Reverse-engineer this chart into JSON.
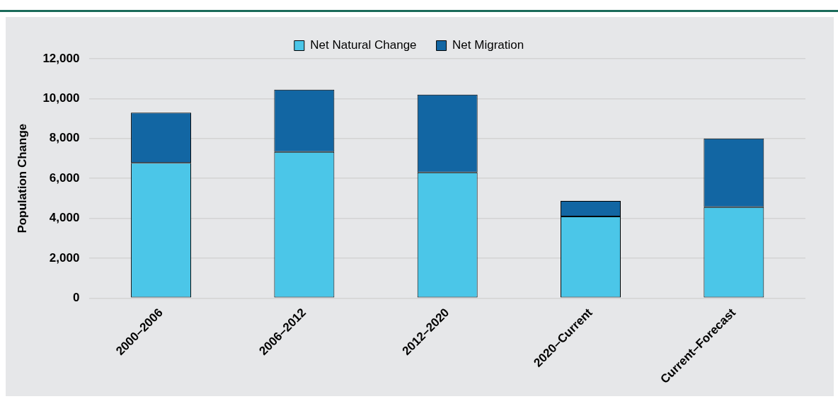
{
  "chart_data": {
    "type": "bar",
    "stacked": true,
    "ylabel": "Population Change",
    "categories": [
      "2000–2006",
      "2006–2012",
      "2012–2020",
      "2020–Current",
      "Current–Forecast"
    ],
    "series": [
      {
        "name": "Net Natural Change",
        "color": "#4bc6e8",
        "values": [
          6780,
          7330,
          6300,
          4090,
          4560
        ]
      },
      {
        "name": "Net Migration",
        "color": "#1266a3",
        "values": [
          2520,
          3120,
          3900,
          780,
          3440
        ]
      }
    ],
    "ylim": [
      0,
      12000
    ],
    "yticks": [
      {
        "value": 0,
        "label": "0"
      },
      {
        "value": 2000,
        "label": "2,000"
      },
      {
        "value": 4000,
        "label": "4,000"
      },
      {
        "value": 6000,
        "label": "6,000"
      },
      {
        "value": 8000,
        "label": "8,000"
      },
      {
        "value": 10000,
        "label": "10,000"
      },
      {
        "value": 12000,
        "label": "12,000"
      }
    ],
    "grid": "y",
    "legend": "top"
  }
}
